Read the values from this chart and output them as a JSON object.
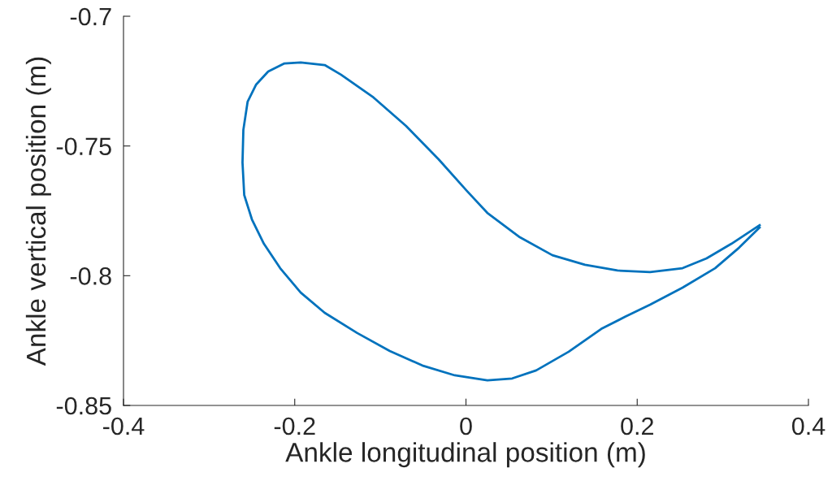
{
  "chart_data": {
    "type": "line",
    "xlabel": "Ankle longitudinal position (m)",
    "ylabel": "Ankle vertical position (m)",
    "series": [
      {
        "color": "#0072bd",
        "x": [
          0.343,
          0.31,
          0.281,
          0.253,
          0.215,
          0.177,
          0.139,
          0.101,
          0.063,
          0.025,
          0.001,
          -0.032,
          -0.07,
          -0.108,
          -0.146,
          -0.165,
          -0.193,
          -0.212,
          -0.231,
          -0.245,
          -0.255,
          -0.26,
          -0.261,
          -0.259,
          -0.25,
          -0.236,
          -0.217,
          -0.193,
          -0.165,
          -0.127,
          -0.089,
          -0.051,
          -0.013,
          0.025,
          0.054,
          0.082,
          0.12,
          0.158,
          0.186,
          0.215,
          0.253,
          0.291,
          0.319,
          0.343
        ],
        "values": [
          -0.7805,
          -0.7877,
          -0.7933,
          -0.7971,
          -0.7986,
          -0.798,
          -0.7958,
          -0.7921,
          -0.7852,
          -0.7758,
          -0.7673,
          -0.7551,
          -0.7423,
          -0.7313,
          -0.7225,
          -0.7188,
          -0.7178,
          -0.7182,
          -0.7213,
          -0.7263,
          -0.7329,
          -0.7438,
          -0.7564,
          -0.7689,
          -0.7783,
          -0.7877,
          -0.7971,
          -0.8065,
          -0.8143,
          -0.8221,
          -0.829,
          -0.8346,
          -0.8384,
          -0.8403,
          -0.8396,
          -0.8365,
          -0.8293,
          -0.8205,
          -0.8158,
          -0.8112,
          -0.8046,
          -0.7971,
          -0.7892,
          -0.7814
        ]
      }
    ],
    "xlim": [
      -0.4,
      0.4
    ],
    "xticks": [
      -0.4,
      -0.2,
      0,
      0.2,
      0.4
    ],
    "ylim": [
      -0.85,
      -0.7
    ],
    "yticks": [
      -0.85,
      -0.8,
      -0.75,
      -0.7
    ],
    "grid": false,
    "marker": "none",
    "line_style": "solid"
  }
}
